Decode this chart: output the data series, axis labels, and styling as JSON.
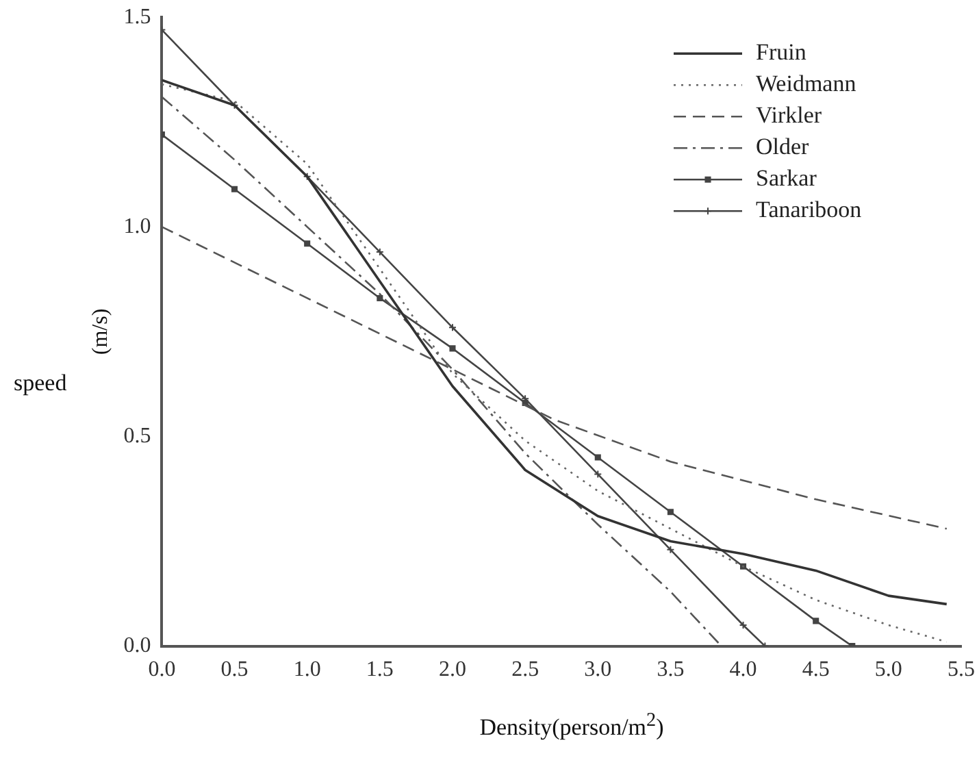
{
  "chart_data": {
    "type": "line",
    "xlabel": "Density(person/m$^{2}$)",
    "ylabel": "(m/s)",
    "annotations": [
      "speed"
    ],
    "xlim": [
      0,
      5.5
    ],
    "ylim": [
      0,
      1.5
    ],
    "xticks": [
      {
        "value": 0,
        "label": "0.0"
      },
      0.5,
      {
        "value": 1,
        "label": "1.0"
      },
      1.5,
      {
        "value": 2,
        "label": "2.0"
      },
      2.5,
      {
        "value": 3,
        "label": "3.0"
      },
      3.5,
      {
        "value": 4,
        "label": "4.0"
      },
      4.5,
      {
        "value": 5,
        "label": "5.0"
      },
      5.5
    ],
    "yticks": [
      {
        "value": 0,
        "label": "0.0"
      },
      0.5,
      {
        "value": 1,
        "label": "1.0"
      },
      1.5
    ],
    "grid": false,
    "legend": "top right",
    "marker": "none",
    "series": [
      {
        "name": "Fruin",
        "color": "#333333",
        "line_style": "solid",
        "x": [
          0,
          0.5,
          1,
          1.5,
          2,
          2.5,
          3,
          3.5,
          4,
          4.5,
          5,
          5.4
        ],
        "values": [
          1.35,
          1.29,
          1.12,
          0.87,
          0.62,
          0.42,
          0.31,
          0.25,
          0.22,
          0.18,
          0.12,
          0.1
        ]
      },
      {
        "name": "Weidmann",
        "color": "#666666",
        "line_style": "dotted",
        "x": [
          0,
          0.5,
          1,
          1.5,
          2,
          2.5,
          3,
          3.5,
          4,
          4.5,
          5,
          5.4
        ],
        "values": [
          1.34,
          1.3,
          1.15,
          0.9,
          0.65,
          0.49,
          0.37,
          0.28,
          0.19,
          0.11,
          0.05,
          0.01
        ]
      },
      {
        "name": "Virkler",
        "color": "#555555",
        "line_style": "dashed",
        "x": [
          0,
          1,
          2,
          2.7,
          3.5,
          4.5,
          5.4
        ],
        "values": [
          1.0,
          0.83,
          0.66,
          0.54,
          0.44,
          0.35,
          0.28
        ]
      },
      {
        "name": "Older",
        "color": "#555555",
        "line_style": "dashdot",
        "x": [
          0,
          0.5,
          1,
          1.5,
          2,
          2.5,
          3,
          3.5,
          3.85
        ],
        "values": [
          1.31,
          1.16,
          1.0,
          0.84,
          0.66,
          0.46,
          0.29,
          0.13,
          0
        ]
      },
      {
        "name": "Sarkar",
        "color": "#444444",
        "line_style": "solid",
        "marker": "square",
        "x": [
          0,
          0.5,
          1,
          1.5,
          2,
          2.5,
          3,
          3.5,
          4,
          4.5,
          4.75
        ],
        "values": [
          1.22,
          1.09,
          0.96,
          0.83,
          0.71,
          0.58,
          0.45,
          0.32,
          0.19,
          0.06,
          0
        ]
      },
      {
        "name": "Tanariboon",
        "color": "#444444",
        "line_style": "solid",
        "marker": "cross",
        "x": [
          0,
          0.5,
          1,
          1.5,
          2,
          2.5,
          3,
          3.5,
          4,
          4.15
        ],
        "values": [
          1.47,
          1.29,
          1.12,
          0.94,
          0.76,
          0.59,
          0.41,
          0.23,
          0.05,
          0
        ]
      }
    ]
  }
}
